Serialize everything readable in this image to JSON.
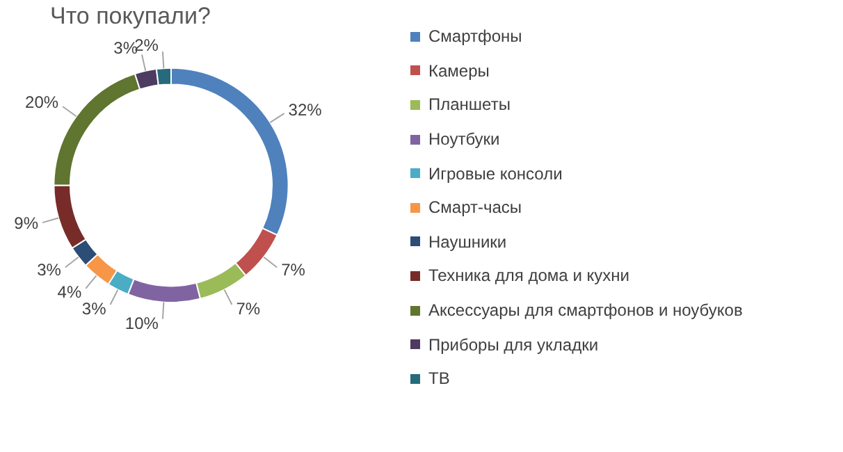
{
  "chart_data": {
    "type": "donut",
    "title": "Что покупали?",
    "categories": [
      "Смартфоны",
      "Камеры",
      "Планшеты",
      "Ноутбуки",
      "Игровые консоли",
      "Смарт-часы",
      "Наушники",
      "Техника для дома и кухни",
      "Аксессуары для смартфонов и ноубуков",
      "Приборы для укладки",
      "ТВ"
    ],
    "values": [
      32,
      7,
      7,
      10,
      3,
      4,
      3,
      9,
      20,
      3,
      2
    ],
    "value_labels": [
      "32%",
      "7%",
      "7%",
      "10%",
      "3%",
      "4%",
      "3%",
      "9%",
      "20%",
      "3%",
      "2%"
    ],
    "colors": [
      "#4f81bd",
      "#c0504d",
      "#9bbb59",
      "#8064a2",
      "#4bacc6",
      "#f79646",
      "#2c4d75",
      "#772c2a",
      "#5f7530",
      "#4d3b62",
      "#276a7c"
    ],
    "legend": "right"
  }
}
